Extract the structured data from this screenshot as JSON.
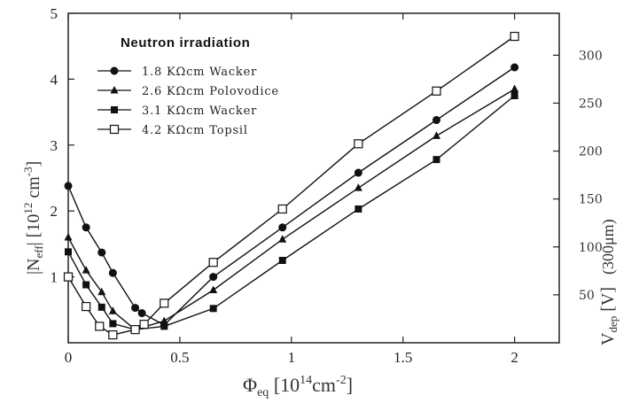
{
  "chart_data": {
    "type": "line",
    "legend_title": "Neutron irradiation",
    "legend_position": "top-left",
    "xlabel": {
      "main": "Φ",
      "sub": "eq",
      "bracket_open": " [10",
      "sup": "14",
      "unit": "cm",
      "unit_sup": "-2",
      "bracket_close": "]"
    },
    "ylabel_left": {
      "prefix": "|N",
      "sub": "eff",
      "mid": "| [10",
      "sup": "12",
      "unit": " cm",
      "unit_sup": "-3",
      "suffix": "]"
    },
    "ylabel_right": {
      "main": "V",
      "sub": "dep",
      "unit": " [V]",
      "extra": "(300μm)"
    },
    "xlim": [
      0,
      2.2
    ],
    "ylim_left": [
      0,
      5
    ],
    "ylim_right": [
      0,
      343.75
    ],
    "x_ticks": [
      {
        "value": 0,
        "label": "0"
      },
      {
        "value": 0.5,
        "label": "0.5"
      },
      {
        "value": 1,
        "label": "1"
      },
      {
        "value": 1.5,
        "label": "1.5"
      },
      {
        "value": 2,
        "label": "2"
      }
    ],
    "y_ticks_left": [
      {
        "value": 1,
        "label": "1"
      },
      {
        "value": 2,
        "label": "2"
      },
      {
        "value": 3,
        "label": "3"
      },
      {
        "value": 4,
        "label": "4"
      },
      {
        "value": 5,
        "label": "5"
      }
    ],
    "y_ticks_right": [
      {
        "value": 50,
        "label": "50"
      },
      {
        "value": 100,
        "label": "100"
      },
      {
        "value": 150,
        "label": "150"
      },
      {
        "value": 200,
        "label": "200"
      },
      {
        "value": 250,
        "label": "250"
      },
      {
        "value": 300,
        "label": "300"
      }
    ],
    "grid": false,
    "series": [
      {
        "name": "1.8 KΩcm Wacker",
        "marker": "circle-filled",
        "color": "#111111",
        "points": [
          [
            0,
            2.38
          ],
          [
            0.08,
            1.75
          ],
          [
            0.15,
            1.37
          ],
          [
            0.2,
            1.06
          ],
          [
            0.3,
            0.53
          ],
          [
            0.33,
            0.45
          ],
          [
            0.43,
            0.27
          ],
          [
            0.65,
            1.0
          ],
          [
            0.96,
            1.75
          ],
          [
            1.3,
            2.58
          ],
          [
            1.65,
            3.38
          ],
          [
            2.0,
            4.18
          ]
        ]
      },
      {
        "name": "2.6 KΩcm Polovodice",
        "marker": "triangle-filled",
        "color": "#111111",
        "points": [
          [
            0,
            1.6
          ],
          [
            0.08,
            1.1
          ],
          [
            0.15,
            0.77
          ],
          [
            0.2,
            0.48
          ],
          [
            0.3,
            0.2
          ],
          [
            0.43,
            0.33
          ],
          [
            0.65,
            0.8
          ],
          [
            0.96,
            1.57
          ],
          [
            1.3,
            2.35
          ],
          [
            1.65,
            3.14
          ],
          [
            2.0,
            3.85
          ]
        ]
      },
      {
        "name": "3.1 KΩcm Wacker",
        "marker": "square-filled",
        "color": "#111111",
        "points": [
          [
            0,
            1.38
          ],
          [
            0.08,
            0.88
          ],
          [
            0.15,
            0.54
          ],
          [
            0.2,
            0.29
          ],
          [
            0.3,
            0.2
          ],
          [
            0.43,
            0.25
          ],
          [
            0.65,
            0.52
          ],
          [
            0.96,
            1.25
          ],
          [
            1.3,
            2.03
          ],
          [
            1.65,
            2.78
          ],
          [
            2.0,
            3.75
          ]
        ]
      },
      {
        "name": "4.2 KΩcm Topsil",
        "marker": "square-open",
        "color": "#111111",
        "points": [
          [
            0,
            1.0
          ],
          [
            0.08,
            0.55
          ],
          [
            0.14,
            0.25
          ],
          [
            0.2,
            0.12
          ],
          [
            0.3,
            0.2
          ],
          [
            0.34,
            0.28
          ],
          [
            0.43,
            0.6
          ],
          [
            0.65,
            1.22
          ],
          [
            0.96,
            2.03
          ],
          [
            1.3,
            3.02
          ],
          [
            1.65,
            3.82
          ],
          [
            2.0,
            4.65
          ]
        ]
      }
    ]
  }
}
